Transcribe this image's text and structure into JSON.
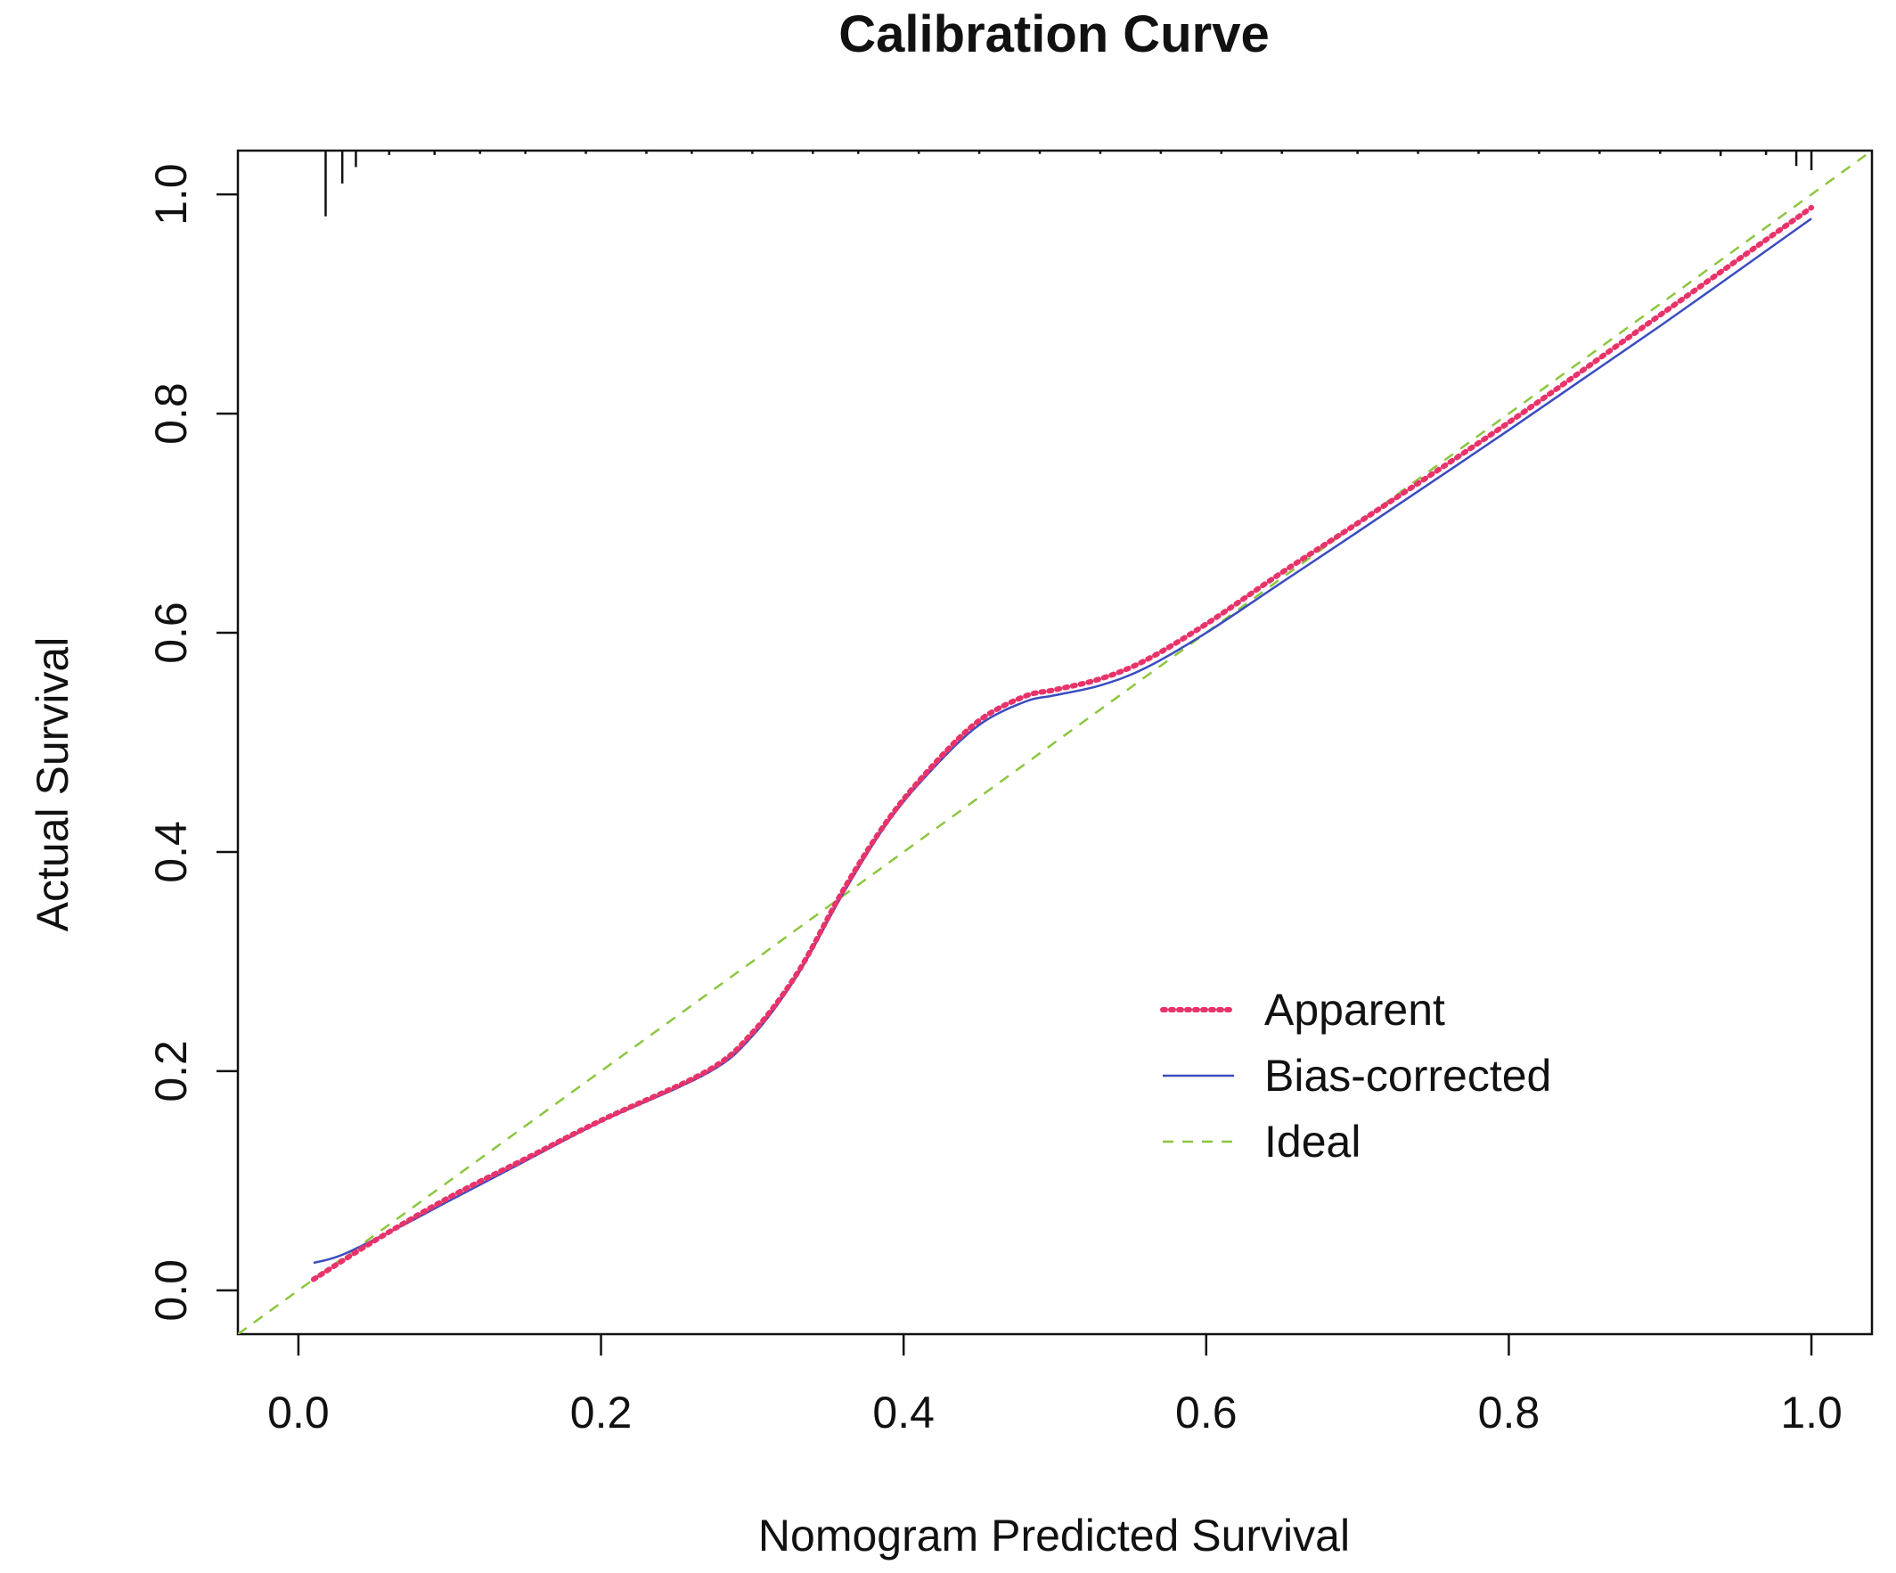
{
  "chart_data": {
    "type": "line",
    "title": "Calibration Curve",
    "xlabel": "Nomogram Predicted Survival",
    "ylabel": "Actual Survival",
    "xlim": [
      -0.04,
      1.04
    ],
    "ylim": [
      -0.04,
      1.04
    ],
    "x_ticks": [
      "0.0",
      "0.2",
      "0.4",
      "0.6",
      "0.8",
      "1.0"
    ],
    "y_ticks": [
      "0.0",
      "0.2",
      "0.4",
      "0.6",
      "0.8",
      "1.0"
    ],
    "grid": false,
    "legend_position": "bottom-right",
    "series": [
      {
        "name": "Apparent",
        "style": "dotted",
        "color": "#e8336a",
        "points": [
          [
            0.01,
            0.01
          ],
          [
            0.05,
            0.045
          ],
          [
            0.1,
            0.085
          ],
          [
            0.15,
            0.12
          ],
          [
            0.2,
            0.155
          ],
          [
            0.27,
            0.2
          ],
          [
            0.3,
            0.235
          ],
          [
            0.33,
            0.29
          ],
          [
            0.36,
            0.365
          ],
          [
            0.39,
            0.43
          ],
          [
            0.42,
            0.48
          ],
          [
            0.45,
            0.52
          ],
          [
            0.48,
            0.542
          ],
          [
            0.5,
            0.548
          ],
          [
            0.53,
            0.558
          ],
          [
            0.56,
            0.575
          ],
          [
            0.6,
            0.608
          ],
          [
            0.65,
            0.655
          ],
          [
            0.7,
            0.7
          ],
          [
            0.8,
            0.792
          ],
          [
            0.9,
            0.89
          ],
          [
            1.0,
            0.988
          ]
        ]
      },
      {
        "name": "Bias-corrected",
        "style": "solid",
        "color": "#3b4cc0",
        "points": [
          [
            0.01,
            0.025
          ],
          [
            0.03,
            0.033
          ],
          [
            0.07,
            0.06
          ],
          [
            0.1,
            0.082
          ],
          [
            0.15,
            0.118
          ],
          [
            0.2,
            0.154
          ],
          [
            0.27,
            0.198
          ],
          [
            0.3,
            0.232
          ],
          [
            0.33,
            0.288
          ],
          [
            0.36,
            0.362
          ],
          [
            0.39,
            0.428
          ],
          [
            0.42,
            0.477
          ],
          [
            0.45,
            0.516
          ],
          [
            0.48,
            0.537
          ],
          [
            0.5,
            0.543
          ],
          [
            0.53,
            0.552
          ],
          [
            0.56,
            0.568
          ],
          [
            0.6,
            0.6
          ],
          [
            0.65,
            0.646
          ],
          [
            0.7,
            0.692
          ],
          [
            0.8,
            0.785
          ],
          [
            0.9,
            0.88
          ],
          [
            1.0,
            0.978
          ]
        ]
      },
      {
        "name": "Ideal",
        "style": "dashed",
        "color": "#8cc63f",
        "points": [
          [
            -0.04,
            -0.04
          ],
          [
            1.04,
            1.04
          ]
        ]
      }
    ],
    "rug": {
      "note": "distribution of predicted values shown along top axis",
      "values": [
        0.018,
        0.029,
        0.038,
        0.06,
        0.09,
        0.12,
        0.15,
        0.19,
        0.23,
        0.26,
        0.3,
        0.34,
        0.37,
        0.41,
        0.45,
        0.49,
        0.53,
        0.57,
        0.61,
        0.65,
        0.7,
        0.74,
        0.78,
        0.82,
        0.86,
        0.9,
        0.94,
        0.97,
        0.99
      ],
      "heights": [
        0.06,
        0.03,
        0.015,
        0.004,
        0.004,
        0.003,
        0.003,
        0.003,
        0.003,
        0.003,
        0.003,
        0.003,
        0.003,
        0.003,
        0.003,
        0.003,
        0.003,
        0.003,
        0.003,
        0.003,
        0.003,
        0.003,
        0.003,
        0.003,
        0.003,
        0.003,
        0.005,
        0.004,
        0.014
      ]
    }
  }
}
